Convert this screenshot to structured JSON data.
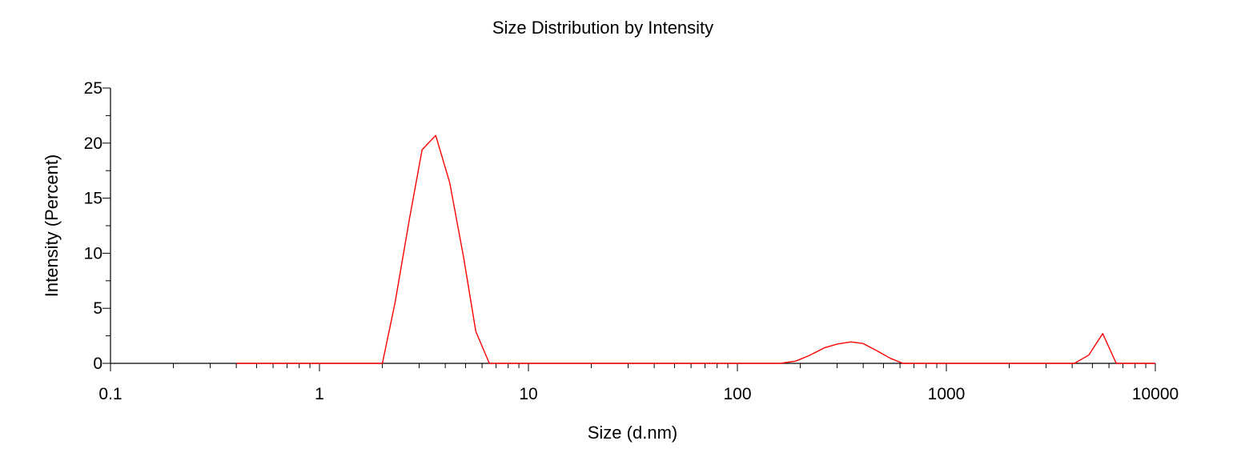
{
  "chart_data": {
    "type": "line",
    "title": "Size Distribution by Intensity",
    "xlabel": "Size (d.nm)",
    "ylabel": "Intensity (Percent)",
    "x_scale": "log",
    "xlim": [
      0.1,
      10000
    ],
    "ylim": [
      0,
      25
    ],
    "x_ticks": [
      0.1,
      1,
      10,
      100,
      1000,
      10000
    ],
    "x_tick_labels": [
      "0.1",
      "1",
      "10",
      "100",
      "1000",
      "10000"
    ],
    "y_ticks": [
      0,
      5,
      10,
      15,
      20,
      25
    ],
    "y_tick_labels": [
      "0",
      "5",
      "10",
      "15",
      "20",
      "25"
    ],
    "grid": false,
    "legend": "none",
    "series": [
      {
        "color": "#ff0000",
        "x": [
          0.4,
          2.0,
          2.3,
          2.7,
          3.1,
          3.6,
          4.2,
          4.9,
          5.6,
          6.5,
          160,
          190,
          220,
          260,
          300,
          350,
          400,
          470,
          540,
          620,
          4100,
          4800,
          5600,
          6500,
          10000
        ],
        "y": [
          0,
          0,
          5.5,
          13.2,
          19.4,
          20.7,
          16.4,
          9.6,
          2.9,
          0,
          0,
          0.2,
          0.7,
          1.4,
          1.75,
          1.95,
          1.8,
          1.1,
          0.45,
          0,
          0,
          0.75,
          2.7,
          0,
          0
        ]
      }
    ]
  }
}
